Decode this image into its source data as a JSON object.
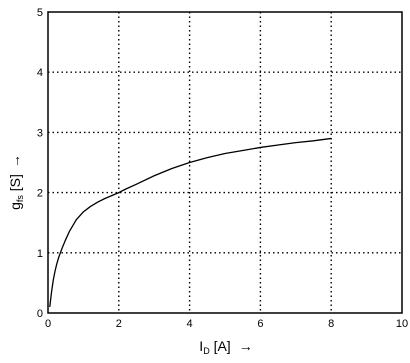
{
  "chart_data": {
    "type": "line",
    "title": "",
    "xlabel": {
      "main": "I",
      "sub": "D",
      "unit": " [A]",
      "arrow": "→"
    },
    "ylabel": {
      "main": "g",
      "sub": "fs",
      "unit": " [S]",
      "arrow": "→"
    },
    "xlim": [
      0,
      10
    ],
    "ylim": [
      0,
      5
    ],
    "x_ticks": [
      0,
      2,
      4,
      6,
      8,
      10
    ],
    "y_ticks": [
      0,
      1,
      2,
      3,
      4,
      5
    ],
    "grid": true,
    "grid_style": "dotted",
    "legend": "none",
    "series": [
      {
        "color": "#000000",
        "x": [
          0.05,
          0.1,
          0.15,
          0.2,
          0.25,
          0.3,
          0.4,
          0.5,
          0.6,
          0.8,
          1.0,
          1.2,
          1.4,
          1.6,
          1.8,
          2.0,
          2.2,
          2.5,
          3.0,
          3.5,
          4.0,
          4.5,
          5.0,
          5.5,
          6.0,
          6.5,
          7.0,
          7.5,
          8.0
        ],
        "y": [
          0.1,
          0.35,
          0.55,
          0.7,
          0.82,
          0.92,
          1.08,
          1.22,
          1.35,
          1.55,
          1.68,
          1.77,
          1.84,
          1.9,
          1.95,
          2.0,
          2.06,
          2.14,
          2.28,
          2.4,
          2.5,
          2.58,
          2.65,
          2.7,
          2.75,
          2.79,
          2.83,
          2.86,
          2.9
        ]
      }
    ]
  }
}
